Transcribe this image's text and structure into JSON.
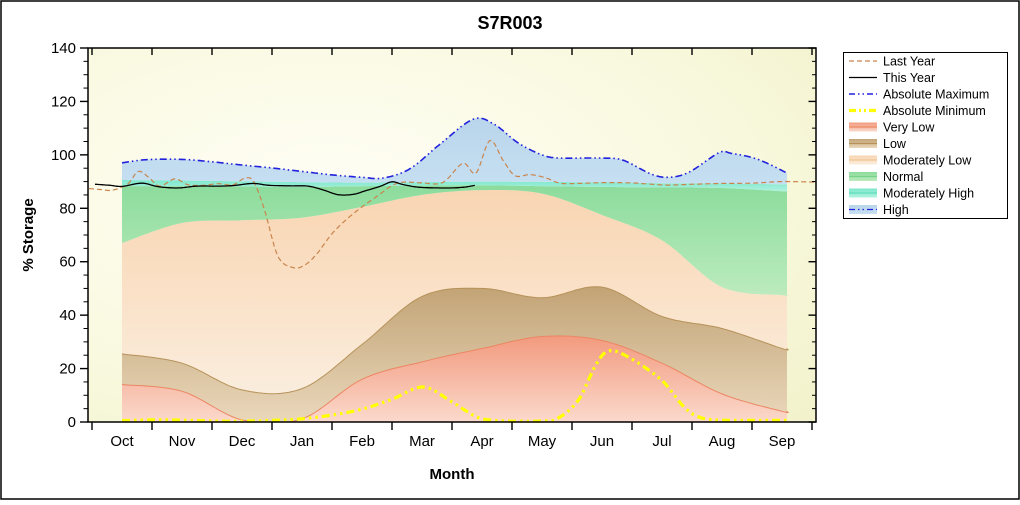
{
  "title": "S7R003",
  "chart_data": {
    "type": "area",
    "title": "S7R003",
    "xlabel": "Month",
    "ylabel": "% Storage",
    "x_categories": [
      "Oct",
      "Nov",
      "Dec",
      "Jan",
      "Feb",
      "Mar",
      "Apr",
      "May",
      "Jun",
      "Jul",
      "Aug",
      "Sep"
    ],
    "ylim": [
      0,
      140
    ],
    "y_major_step": 20,
    "y_minor_step": 5,
    "grid": false,
    "legend_position": "right",
    "plot_bg_colors": [
      "#fffef6",
      "#f9f9e0",
      "#f1f1c8"
    ],
    "bands_x_extent": [
      0,
      11.083
    ],
    "bands": [
      {
        "name": "Very Low",
        "top": [
          14,
          11.5,
          0.8,
          1.2,
          16,
          22.5,
          27.5,
          32,
          30.5,
          22,
          10.5,
          4
        ],
        "fill_top": "#f29a7e",
        "fill_bottom": "#fbd9cc",
        "edge": "#ec8663"
      },
      {
        "name": "Low",
        "top": [
          25.5,
          22,
          12,
          12.5,
          29,
          47,
          50,
          46.5,
          50.5,
          39.5,
          35,
          27.5
        ],
        "fill_top": "#c2a375",
        "fill_bottom": "#ead8bc",
        "edge": "#b69259"
      },
      {
        "name": "Moderately Low",
        "top": [
          67,
          74.5,
          75.5,
          76.5,
          80.5,
          85,
          86.8,
          85.5,
          77.5,
          68,
          50.5,
          47.5
        ],
        "fill_top": "#f9d5b2",
        "fill_bottom": "#faeddd",
        "edge": null
      },
      {
        "name": "Normal",
        "top": [
          88.3,
          88.3,
          88.2,
          88.0,
          88.3,
          88.5,
          88.6,
          88.3,
          88.0,
          87.8,
          87.6,
          86.4
        ],
        "fill_top": "#8cdc9c",
        "fill_bottom": "#bcebbe",
        "edge": null
      },
      {
        "name": "Moderately High",
        "top": [
          90.6,
          90.4,
          90.1,
          89.8,
          89.6,
          89.8,
          90.0,
          89.9,
          89.7,
          89.4,
          89.3,
          89.0
        ],
        "fill_top": "#7de7cb",
        "fill_bottom": "#aff2e0",
        "edge": null
      },
      {
        "name": "High",
        "top": "absolute_maximum",
        "fill_top": "#b9d5eb",
        "fill_bottom": "#c6dff2",
        "edge": null
      }
    ],
    "series": [
      {
        "name": "Last Year",
        "color": "#c9854e",
        "width": 1.2,
        "dash": "5 3",
        "points": [
          [
            -0.55,
            87.4
          ],
          [
            -0.35,
            87.0
          ],
          [
            -0.15,
            86.8
          ],
          [
            0.1,
            89.2
          ],
          [
            0.27,
            93.8
          ],
          [
            0.45,
            91.5
          ],
          [
            0.63,
            88.3
          ],
          [
            0.88,
            91.0
          ],
          [
            1.1,
            88.8
          ],
          [
            1.35,
            88.6
          ],
          [
            1.6,
            89.2
          ],
          [
            1.85,
            88.8
          ],
          [
            2.05,
            91.3
          ],
          [
            2.2,
            89.8
          ],
          [
            2.38,
            79.0
          ],
          [
            2.6,
            62.0
          ],
          [
            2.85,
            57.8
          ],
          [
            3.05,
            58.8
          ],
          [
            3.25,
            63.0
          ],
          [
            3.5,
            70.5
          ],
          [
            3.75,
            76.0
          ],
          [
            4.0,
            80.5
          ],
          [
            4.25,
            84.5
          ],
          [
            4.5,
            88.5
          ],
          [
            4.7,
            89.8
          ],
          [
            5.0,
            89.5
          ],
          [
            5.35,
            89.7
          ],
          [
            5.68,
            96.8
          ],
          [
            5.9,
            93.2
          ],
          [
            6.13,
            105.3
          ],
          [
            6.35,
            98.0
          ],
          [
            6.55,
            92.2
          ],
          [
            6.8,
            92.6
          ],
          [
            7.05,
            91.5
          ],
          [
            7.3,
            89.4
          ],
          [
            7.6,
            89.3
          ],
          [
            8.0,
            89.6
          ],
          [
            8.5,
            89.5
          ],
          [
            9.05,
            88.7
          ],
          [
            9.5,
            89.0
          ],
          [
            10.0,
            89.3
          ],
          [
            10.5,
            89.4
          ],
          [
            11.0,
            90.0
          ],
          [
            11.55,
            89.8
          ]
        ]
      },
      {
        "name": "This Year",
        "color": "#000000",
        "width": 1.3,
        "dash": null,
        "points": [
          [
            -0.45,
            89.0
          ],
          [
            -0.2,
            88.6
          ],
          [
            0.0,
            88.2
          ],
          [
            0.33,
            89.4
          ],
          [
            0.6,
            88.1
          ],
          [
            0.92,
            87.6
          ],
          [
            1.25,
            88.3
          ],
          [
            1.6,
            88.3
          ],
          [
            1.85,
            88.5
          ],
          [
            2.18,
            89.3
          ],
          [
            2.45,
            88.6
          ],
          [
            2.8,
            88.4
          ],
          [
            3.1,
            88.3
          ],
          [
            3.35,
            86.9
          ],
          [
            3.6,
            85.1
          ],
          [
            3.85,
            85.2
          ],
          [
            4.05,
            86.5
          ],
          [
            4.3,
            88.2
          ],
          [
            4.5,
            89.9
          ],
          [
            4.68,
            88.9
          ],
          [
            4.9,
            88.0
          ],
          [
            5.1,
            87.7
          ],
          [
            5.45,
            87.6
          ],
          [
            5.7,
            87.9
          ],
          [
            5.88,
            88.6
          ]
        ]
      },
      {
        "name": "Absolute Maximum",
        "color": "#2222dd",
        "width": 1.6,
        "dash": "7 3 1.5 3 1.5 3",
        "points": [
          [
            0,
            97.0
          ],
          [
            0.4,
            98.2
          ],
          [
            1,
            98.3
          ],
          [
            1.5,
            97.4
          ],
          [
            2,
            96.2
          ],
          [
            2.5,
            95.1
          ],
          [
            3,
            93.8
          ],
          [
            3.5,
            92.5
          ],
          [
            4,
            91.6
          ],
          [
            4.35,
            91.3
          ],
          [
            4.8,
            94.8
          ],
          [
            5.3,
            104.0
          ],
          [
            5.85,
            113.3
          ],
          [
            6.2,
            111.5
          ],
          [
            6.6,
            104.5
          ],
          [
            7.0,
            100.0
          ],
          [
            7.3,
            98.8
          ],
          [
            8.0,
            98.8
          ],
          [
            8.35,
            98.0
          ],
          [
            8.8,
            93.0
          ],
          [
            9.1,
            91.6
          ],
          [
            9.45,
            93.5
          ],
          [
            9.95,
            100.8
          ],
          [
            10.15,
            100.6
          ],
          [
            10.6,
            98.3
          ],
          [
            11.083,
            93.2
          ]
        ]
      },
      {
        "name": "Absolute Minimum",
        "color": "#ffff00",
        "width": 3.2,
        "dash": "8 4 2.5 4 2.5 4",
        "points": [
          [
            0,
            0.5
          ],
          [
            0.5,
            0.8
          ],
          [
            1,
            0.7
          ],
          [
            1.5,
            0.4
          ],
          [
            2,
            0.3
          ],
          [
            2.5,
            0.6
          ],
          [
            3,
            1.2
          ],
          [
            3.5,
            2.6
          ],
          [
            4,
            4.8
          ],
          [
            4.5,
            8.5
          ],
          [
            5.02,
            13.1
          ],
          [
            5.5,
            7.5
          ],
          [
            5.9,
            2.0
          ],
          [
            6.2,
            0.6
          ],
          [
            6.6,
            0.3
          ],
          [
            7.0,
            0.4
          ],
          [
            7.25,
            1.2
          ],
          [
            7.6,
            8.0
          ],
          [
            7.9,
            21.5
          ],
          [
            8.13,
            26.7
          ],
          [
            8.5,
            23.5
          ],
          [
            9.0,
            15.5
          ],
          [
            9.35,
            6.0
          ],
          [
            9.6,
            2.0
          ],
          [
            9.9,
            0.8
          ],
          [
            10.5,
            0.6
          ],
          [
            11.083,
            0.6
          ]
        ]
      }
    ],
    "legend": [
      {
        "label": "Last Year",
        "sample": "line",
        "color": "#c9854e",
        "width": 1.2,
        "dash": "5 3"
      },
      {
        "label": "This Year",
        "sample": "line",
        "color": "#000000",
        "width": 1.3,
        "dash": null
      },
      {
        "label": "Absolute Maximum",
        "sample": "line",
        "color": "#2222dd",
        "width": 1.6,
        "dash": "6 3 1.5 3 1.5 3"
      },
      {
        "label": "Absolute Minimum",
        "sample": "line",
        "color": "#ffff00",
        "width": 3.2,
        "dash": "7 3 2 3 2 3"
      },
      {
        "label": "Very Low",
        "sample": "band",
        "fill_top": "#f29a7e",
        "fill_bottom": "#fbd9cc",
        "line": "#ec8663",
        "dash": null
      },
      {
        "label": "Low",
        "sample": "band",
        "fill_top": "#c2a375",
        "fill_bottom": "#ead8bc",
        "line": "#b69259",
        "dash": null
      },
      {
        "label": "Moderately Low",
        "sample": "band",
        "fill_top": "#f9d5b2",
        "fill_bottom": "#faeddd",
        "line": "#f0c490",
        "dash": null
      },
      {
        "label": "Normal",
        "sample": "band",
        "fill_top": "#8cdc9c",
        "fill_bottom": "#bcebbe",
        "line": "#79d28c",
        "dash": null
      },
      {
        "label": "Moderately High",
        "sample": "band",
        "fill_top": "#7de7cb",
        "fill_bottom": "#aff2e0",
        "line": "#62ddbc",
        "dash": null
      },
      {
        "label": "High",
        "sample": "band-line",
        "fill_top": "#b9d5eb",
        "fill_bottom": "#c6dff2",
        "line": "#2222dd",
        "dash": "6 3 1.5 3 1.5 3"
      }
    ]
  }
}
